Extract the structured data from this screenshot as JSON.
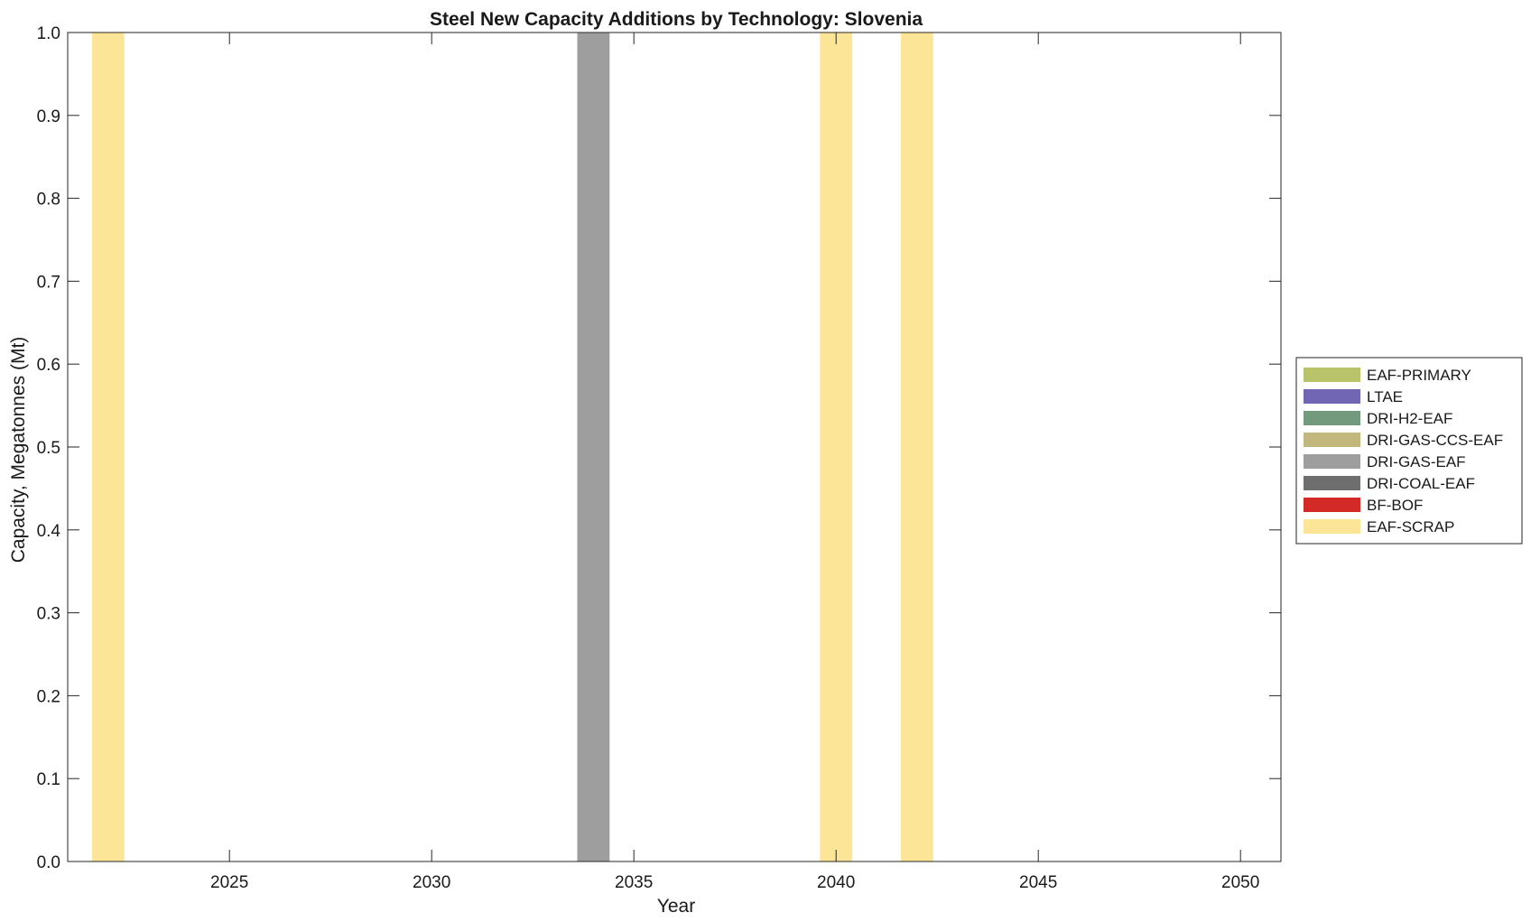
{
  "chart_data": {
    "type": "bar",
    "stacked": true,
    "title": "Steel New Capacity Additions by Technology: Slovenia",
    "xlabel": "Year",
    "ylabel": "Capacity, Megatonnes (Mt)",
    "xlim": [
      2021,
      2051
    ],
    "ylim": [
      0,
      1.0
    ],
    "x_ticks": [
      2025,
      2030,
      2035,
      2040,
      2045,
      2050
    ],
    "x_tick_labels": [
      "2025",
      "2030",
      "2035",
      "2040",
      "2045",
      "2050"
    ],
    "y_ticks": [
      0,
      0.1,
      0.2,
      0.3,
      0.4,
      0.5,
      0.6,
      0.7,
      0.8,
      0.9,
      1.0
    ],
    "y_tick_labels": [
      "0.0",
      "0.1",
      "0.2",
      "0.3",
      "0.4",
      "0.5",
      "0.6",
      "0.7",
      "0.8",
      "0.9",
      "1.0"
    ],
    "bar_width_years": 0.8,
    "grid": false,
    "legend_position": "right",
    "series": [
      {
        "name": "EAF-PRIMARY",
        "color": "#b9c36a",
        "points": []
      },
      {
        "name": "LTAE",
        "color": "#7066b3",
        "points": []
      },
      {
        "name": "DRI-H2-EAF",
        "color": "#739a7c",
        "points": []
      },
      {
        "name": "DRI-GAS-CCS-EAF",
        "color": "#c2b87e",
        "points": []
      },
      {
        "name": "DRI-GAS-EAF",
        "color": "#9e9e9e",
        "points": [
          {
            "x": 2034,
            "y": 1.0
          }
        ]
      },
      {
        "name": "DRI-COAL-EAF",
        "color": "#6e6e6e",
        "points": []
      },
      {
        "name": "BF-BOF",
        "color": "#d42a27",
        "points": []
      },
      {
        "name": "EAF-SCRAP",
        "color": "#fde597",
        "points": [
          {
            "x": 2022,
            "y": 1.0
          },
          {
            "x": 2040,
            "y": 1.0
          },
          {
            "x": 2042,
            "y": 1.0
          }
        ]
      }
    ]
  }
}
